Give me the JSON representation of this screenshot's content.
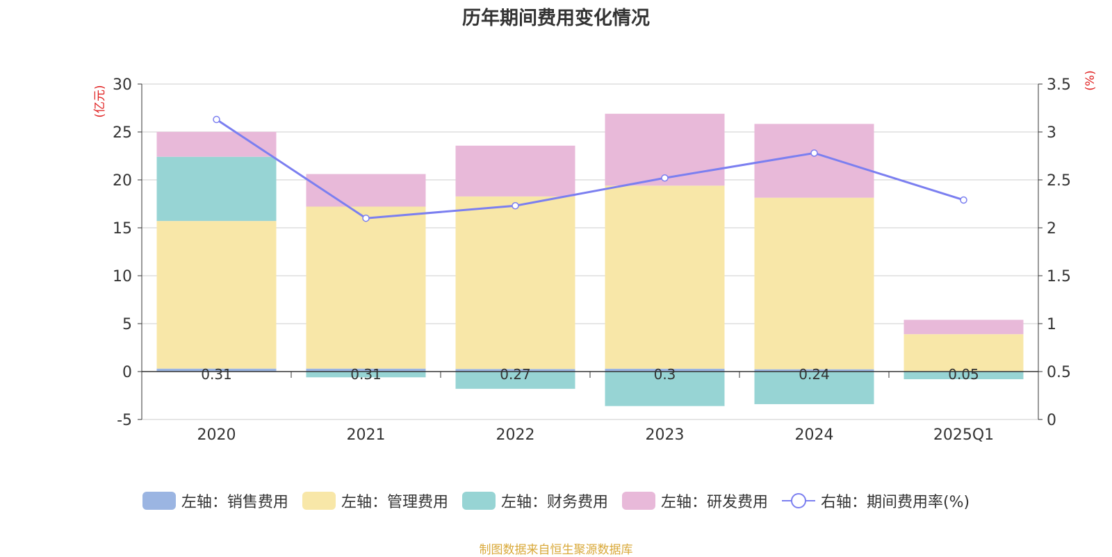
{
  "chart_data": {
    "type": "bar",
    "title": "历年期间费用变化情况",
    "categories": [
      "2020",
      "2021",
      "2022",
      "2023",
      "2024",
      "2025Q1"
    ],
    "left_axis": {
      "unit_label": "(亿元)",
      "ylim": [
        -5,
        30
      ],
      "ticks": [
        "-5",
        "0",
        "5",
        "10",
        "15",
        "20",
        "25",
        "30"
      ]
    },
    "right_axis": {
      "unit_label": "(%)",
      "ylim": [
        0,
        3.5
      ],
      "ticks": [
        "0",
        "0.5",
        "1",
        "1.5",
        "2",
        "2.5",
        "3",
        "3.5"
      ]
    },
    "series": [
      {
        "name": "左轴：销售费用",
        "axis": "left",
        "type": "bar",
        "color": "#9bb5e2",
        "values": [
          0.31,
          0.31,
          0.27,
          0.3,
          0.24,
          0.05
        ]
      },
      {
        "name": "左轴：管理费用",
        "axis": "left",
        "type": "bar",
        "color": "#f8e7a8",
        "values": [
          15.4,
          16.9,
          18.0,
          19.1,
          17.9,
          3.85
        ]
      },
      {
        "name": "左轴：财务费用",
        "axis": "left",
        "type": "bar",
        "color": "#97d4d4",
        "values": [
          6.7,
          -0.6,
          -1.8,
          -3.6,
          -3.4,
          -0.8
        ]
      },
      {
        "name": "左轴：研发费用",
        "axis": "left",
        "type": "bar",
        "color": "#e8b9d9",
        "values": [
          2.6,
          3.4,
          5.3,
          7.5,
          7.7,
          1.5
        ]
      },
      {
        "name": "右轴：期间费用率(%)",
        "axis": "right",
        "type": "line",
        "color": "#7b7ff0",
        "values": [
          3.13,
          2.1,
          2.23,
          2.52,
          2.78,
          2.29
        ]
      }
    ],
    "bar_labels": [
      "0.31",
      "0.31",
      "0.27",
      "0.3",
      "0.24",
      "0.05"
    ],
    "legend_position": "bottom-center"
  },
  "footer_text": "制图数据来自恒生聚源数据库"
}
